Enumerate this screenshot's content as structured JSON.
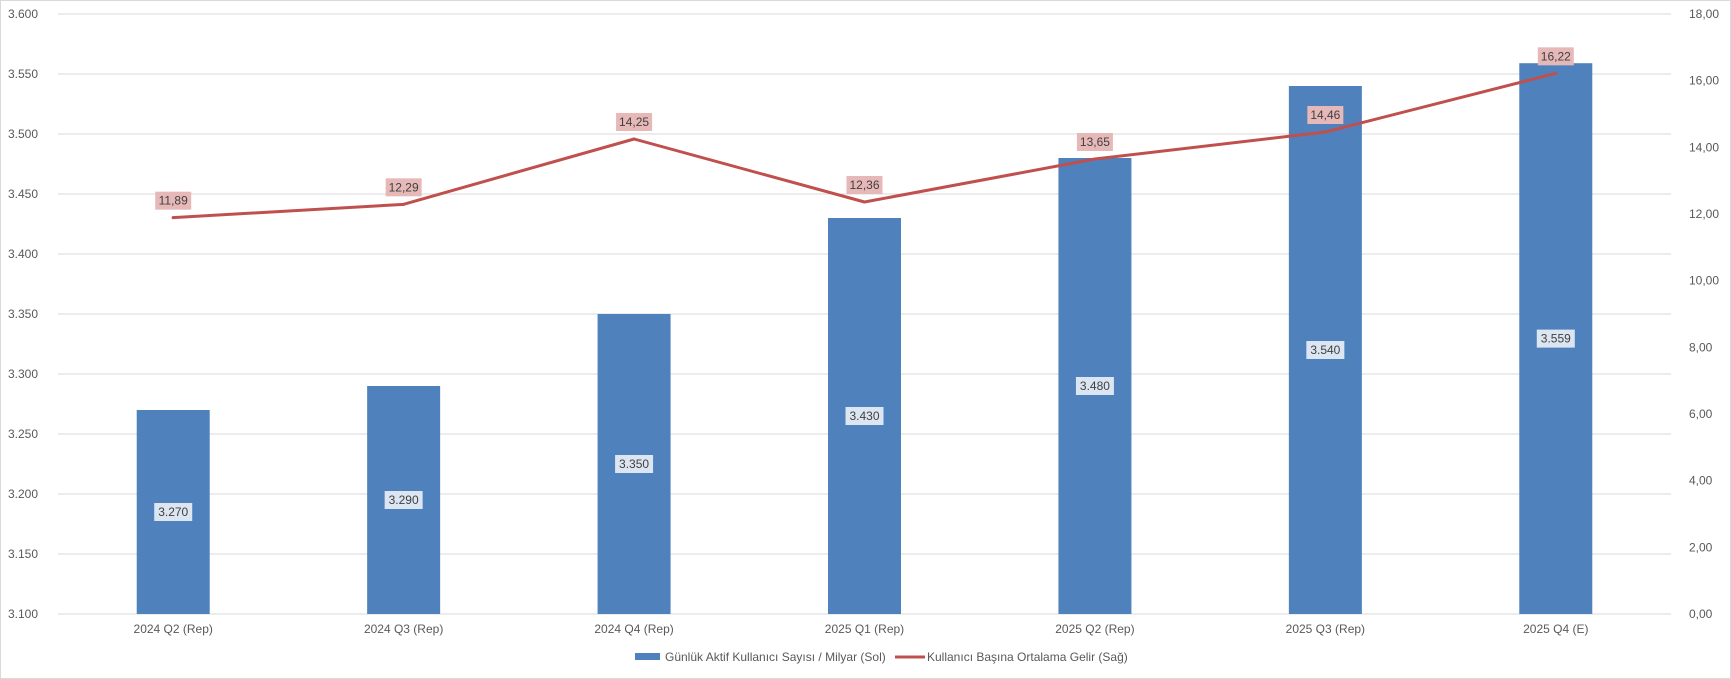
{
  "chart_data": {
    "type": "bar",
    "categories": [
      "2024 Q2 (Rep)",
      "2024 Q3 (Rep)",
      "2024 Q4 (Rep)",
      "2025 Q1 (Rep)",
      "2025 Q2 (Rep)",
      "2025 Q3 (Rep)",
      "2025 Q4 (E)"
    ],
    "series": [
      {
        "name": "Günlük Aktif Kullanıcı Sayısı / Milyar (Sol)",
        "type": "bar",
        "axis": "left",
        "color": "#4f81bd",
        "values": [
          3270,
          3290,
          3350,
          3430,
          3480,
          3540,
          3559
        ],
        "labels": [
          "3.270",
          "3.290",
          "3.350",
          "3.430",
          "3.480",
          "3.540",
          "3.559"
        ]
      },
      {
        "name": "Kullanıcı Başına Ortalama Gelir (Sağ)",
        "type": "line",
        "axis": "right",
        "color": "#c0504d",
        "values": [
          11.89,
          12.29,
          14.25,
          12.36,
          13.65,
          14.46,
          16.22
        ],
        "labels": [
          "11,89",
          "12,29",
          "14,25",
          "12,36",
          "13,65",
          "14,46",
          "16,22"
        ]
      }
    ],
    "y_left": {
      "ylim": [
        3100,
        3600
      ],
      "ticks": [
        3100,
        3150,
        3200,
        3250,
        3300,
        3350,
        3400,
        3450,
        3500,
        3550,
        3600
      ],
      "tick_labels": [
        "3.100",
        "3.150",
        "3.200",
        "3.250",
        "3.300",
        "3.350",
        "3.400",
        "3.450",
        "3.500",
        "3.550",
        "3.600"
      ]
    },
    "y_right": {
      "ylim": [
        0,
        18
      ],
      "ticks": [
        0,
        2,
        4,
        6,
        8,
        10,
        12,
        14,
        16,
        18
      ],
      "tick_labels": [
        "0,00",
        "2,00",
        "4,00",
        "6,00",
        "8,00",
        "10,00",
        "12,00",
        "14,00",
        "16,00",
        "18,00"
      ]
    },
    "title": "",
    "xlabel": "",
    "ylabel": "",
    "grid": true,
    "legend_position": "bottom",
    "colors": {
      "grid": "#d9d9d9",
      "bar_label_bg": "#dce6f2",
      "line_label_bg": "#e6b9b8"
    }
  }
}
